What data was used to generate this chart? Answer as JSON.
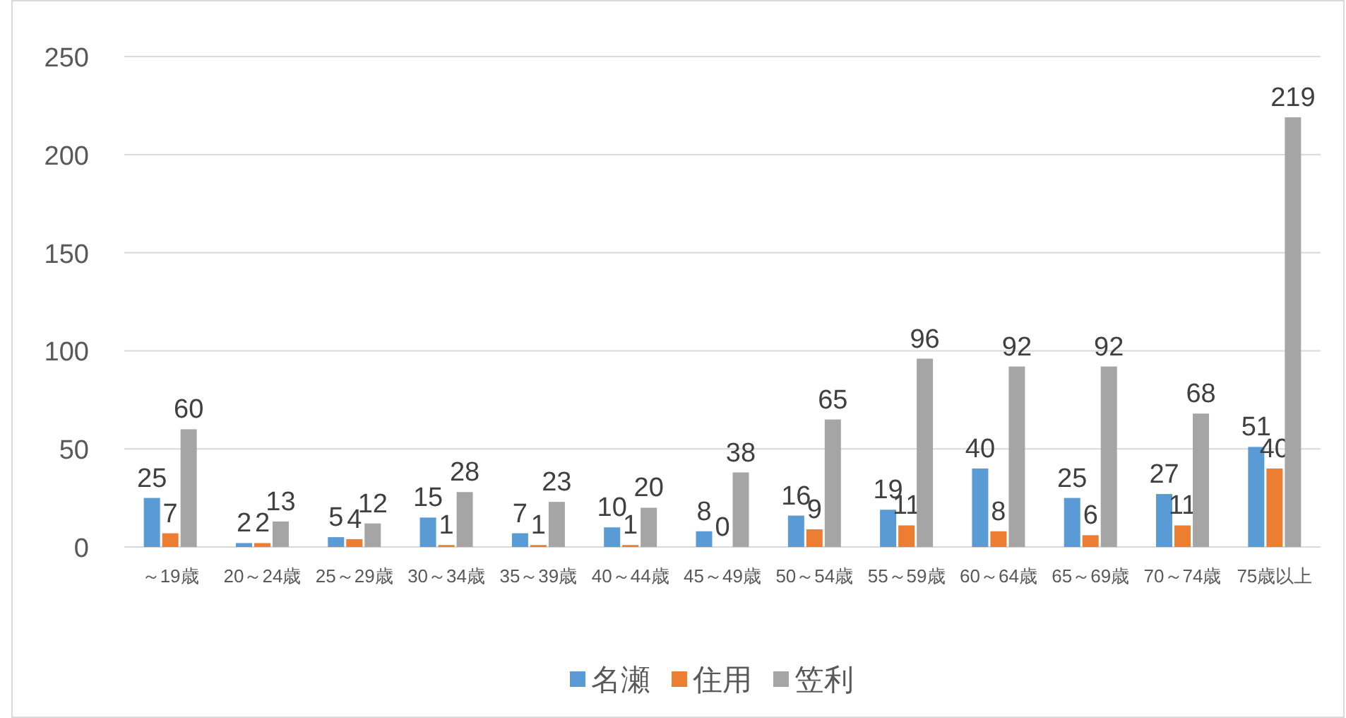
{
  "chart_data": {
    "type": "bar",
    "categories": [
      "～19歳",
      "20～24歳",
      "25～29歳",
      "30～34歳",
      "35～39歳",
      "40～44歳",
      "45～49歳",
      "50～54歳",
      "55～59歳",
      "60～64歳",
      "65～69歳",
      "70～74歳",
      "75歳以上"
    ],
    "series": [
      {
        "name": "名瀬",
        "color": "#5b9bd5",
        "values": [
          25,
          2,
          5,
          15,
          7,
          10,
          8,
          16,
          19,
          40,
          25,
          27,
          51
        ]
      },
      {
        "name": "住用",
        "color": "#ed7d31",
        "values": [
          7,
          2,
          4,
          1,
          1,
          1,
          0,
          9,
          11,
          8,
          6,
          11,
          40
        ]
      },
      {
        "name": "笠利",
        "color": "#a5a5a5",
        "values": [
          60,
          13,
          12,
          28,
          23,
          20,
          38,
          65,
          96,
          92,
          92,
          68,
          219
        ]
      }
    ],
    "ylim": [
      0,
      250
    ],
    "yticks": [
      0,
      50,
      100,
      150,
      200,
      250
    ],
    "grid": "y",
    "legend": "bottom",
    "data_labels": true
  }
}
